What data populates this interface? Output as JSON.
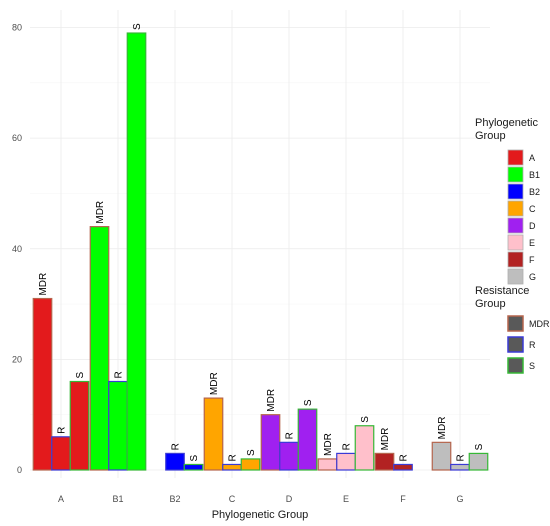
{
  "chart_data": {
    "type": "bar",
    "title": "",
    "xlabel": "Phylogenetic Group",
    "ylabel": "",
    "ylim": [
      0,
      81
    ],
    "yticks": [
      0,
      20,
      40,
      60,
      80
    ],
    "grid": true,
    "legend_placement": "right",
    "categories": [
      "A",
      "B1",
      "B2",
      "C",
      "D",
      "E",
      "F",
      "G"
    ],
    "bars": [
      {
        "group": "A",
        "resistance": "MDR",
        "value": 31
      },
      {
        "group": "A",
        "resistance": "R",
        "value": 6
      },
      {
        "group": "A",
        "resistance": "S",
        "value": 16
      },
      {
        "group": "B1",
        "resistance": "MDR",
        "value": 44
      },
      {
        "group": "B1",
        "resistance": "R",
        "value": 16
      },
      {
        "group": "B1",
        "resistance": "S",
        "value": 79
      },
      {
        "group": "B2",
        "resistance": "R",
        "value": 3
      },
      {
        "group": "B2",
        "resistance": "S",
        "value": 1
      },
      {
        "group": "C",
        "resistance": "MDR",
        "value": 13
      },
      {
        "group": "C",
        "resistance": "R",
        "value": 1
      },
      {
        "group": "C",
        "resistance": "S",
        "value": 2
      },
      {
        "group": "D",
        "resistance": "MDR",
        "value": 10
      },
      {
        "group": "D",
        "resistance": "R",
        "value": 5
      },
      {
        "group": "D",
        "resistance": "S",
        "value": 11
      },
      {
        "group": "E",
        "resistance": "MDR",
        "value": 2
      },
      {
        "group": "E",
        "resistance": "R",
        "value": 3
      },
      {
        "group": "E",
        "resistance": "S",
        "value": 8
      },
      {
        "group": "F",
        "resistance": "MDR",
        "value": 3
      },
      {
        "group": "F",
        "resistance": "R",
        "value": 1
      },
      {
        "group": "G",
        "resistance": "MDR",
        "value": 5
      },
      {
        "group": "G",
        "resistance": "R",
        "value": 1
      },
      {
        "group": "G",
        "resistance": "S",
        "value": 3
      }
    ],
    "fill_legend": {
      "title": [
        "Phylogenetic",
        "Group"
      ],
      "items": [
        {
          "label": "A",
          "color": "#e31a1c"
        },
        {
          "label": "B1",
          "color": "#00ff00"
        },
        {
          "label": "B2",
          "color": "#0000ff"
        },
        {
          "label": "C",
          "color": "#ffa500"
        },
        {
          "label": "D",
          "color": "#a020f0"
        },
        {
          "label": "E",
          "color": "#ffc0cb"
        },
        {
          "label": "F",
          "color": "#b22222"
        },
        {
          "label": "G",
          "color": "#bebebe"
        }
      ]
    },
    "outline_legend": {
      "title": [
        "Resistance",
        "Group"
      ],
      "items": [
        {
          "label": "MDR",
          "color": "#b5654d"
        },
        {
          "label": "R",
          "color": "#3a3ad6"
        },
        {
          "label": "S",
          "color": "#36b836"
        }
      ]
    }
  }
}
